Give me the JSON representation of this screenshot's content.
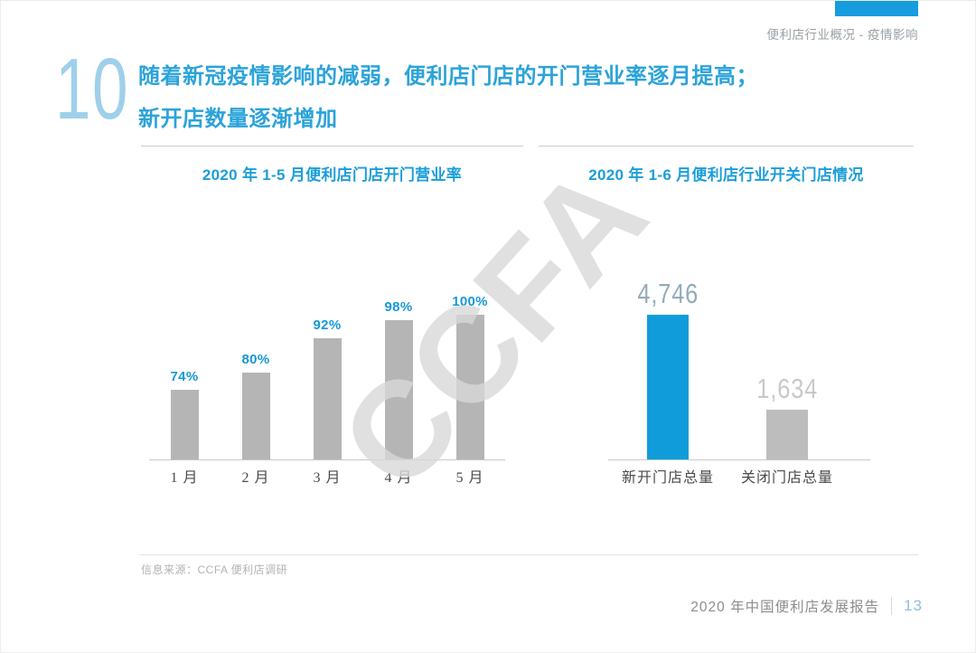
{
  "page": {
    "header_tag": "便利店行业概况 - 疫情影响",
    "slide_number": "10",
    "title_line1": "随着新冠疫情影响的减弱，便利店门店的开门营业率逐月提高；",
    "title_line2": "新开店数量逐渐增加",
    "watermark": "CCFA",
    "source": "信息来源：CCFA 便利店调研",
    "footer": {
      "report_title": "2020 年中国便利店发展报告",
      "page_number": "13"
    }
  },
  "colors": {
    "accent_blue": "#169cdf",
    "title_blue": "#2ba3da",
    "chart_title_blue": "#1b9dd9",
    "bar_gray": "#b5b5b5",
    "bar_blue": "#109cdb",
    "slide_number_blue": "#9fd0e9",
    "page_number_blue": "#8cc0d9",
    "watermark_gray": "#d9d9d9",
    "muted_text": "#9aa0a4"
  },
  "chart_data": [
    {
      "type": "bar",
      "title": "2020 年 1-5 月便利店门店开门营业率",
      "categories": [
        "1 月",
        "2 月",
        "3 月",
        "4 月",
        "5 月"
      ],
      "values": [
        74,
        80,
        92,
        98,
        100
      ],
      "value_labels": [
        "74%",
        "80%",
        "92%",
        "98%",
        "100%"
      ],
      "xlabel": "",
      "ylabel": "",
      "ylim": [
        50,
        100
      ],
      "grid": false,
      "legend": false,
      "bar_color": "#b5b5b5",
      "value_label_color": "#1798d8"
    },
    {
      "type": "bar",
      "title": "2020 年 1-6 月便利店行业开关门店情况",
      "categories": [
        "新开门店总量",
        "关闭门店总量"
      ],
      "values": [
        4746,
        1634
      ],
      "value_labels": [
        "4,746",
        "1,634"
      ],
      "xlabel": "",
      "ylabel": "",
      "ylim": [
        0,
        4746
      ],
      "grid": false,
      "legend": false,
      "bar_colors": [
        "#109cdb",
        "#bdbdbd"
      ],
      "value_label_colors": [
        "#93acba",
        "#c9c9c9"
      ]
    }
  ]
}
